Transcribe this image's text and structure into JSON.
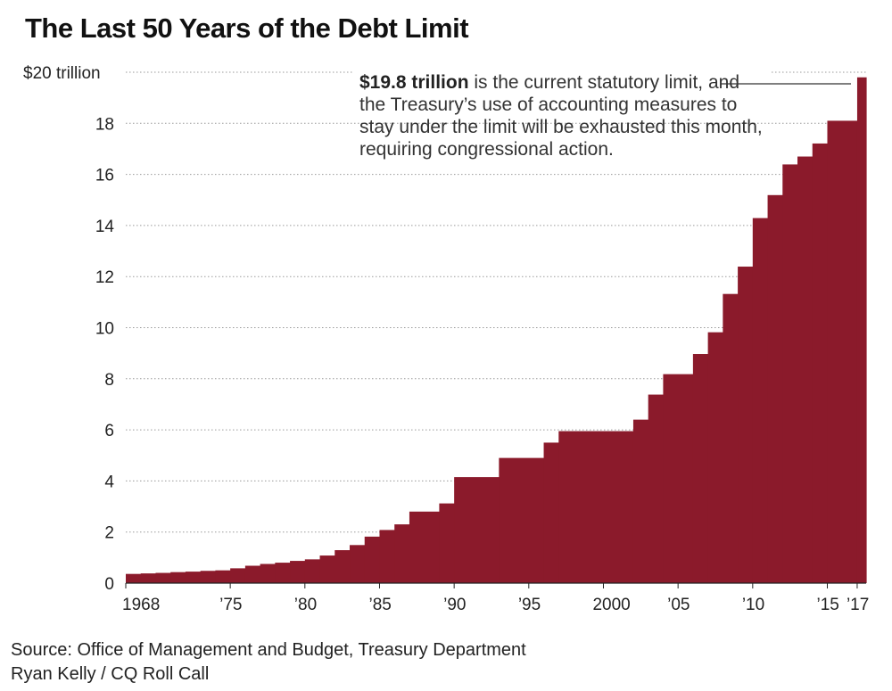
{
  "title": "The Last 50 Years of the Debt Limit",
  "annotation": {
    "bold": "$19.8 trillion",
    "text": " is the current statutory limit, and the Treasury’s use of accounting measures to stay under the limit will be exhausted this month, requiring congressional action."
  },
  "source_line": "Source: Office of Management and Budget, Treasury Department",
  "credit_line": "Ryan Kelly / CQ Roll Call",
  "colors": {
    "fill": "#8b1a2b",
    "grid": "#9a9a9a",
    "text": "#222222"
  },
  "chart_data": {
    "type": "area",
    "step": true,
    "title": "The Last 50 Years of the Debt Limit",
    "xlabel": "",
    "ylabel": "",
    "xlim": [
      1968,
      2017.6
    ],
    "ylim": [
      0,
      20
    ],
    "y_ticks": [
      {
        "value": 0,
        "label": "0"
      },
      {
        "value": 2,
        "label": "2"
      },
      {
        "value": 4,
        "label": "4"
      },
      {
        "value": 6,
        "label": "6"
      },
      {
        "value": 8,
        "label": "8"
      },
      {
        "value": 10,
        "label": "10"
      },
      {
        "value": 12,
        "label": "12"
      },
      {
        "value": 14,
        "label": "14"
      },
      {
        "value": 16,
        "label": "16"
      },
      {
        "value": 18,
        "label": "18"
      },
      {
        "value": 20,
        "label": "$20 trillion"
      }
    ],
    "x_ticks": [
      {
        "value": 1968,
        "label": "1968"
      },
      {
        "value": 1975,
        "label": "’75"
      },
      {
        "value": 1980,
        "label": "’80"
      },
      {
        "value": 1985,
        "label": "’85"
      },
      {
        "value": 1990,
        "label": "’90"
      },
      {
        "value": 1995,
        "label": "’95"
      },
      {
        "value": 2000,
        "label": "2000"
      },
      {
        "value": 2005,
        "label": "’05"
      },
      {
        "value": 2010,
        "label": "’10"
      },
      {
        "value": 2015,
        "label": "’15"
      },
      {
        "value": 2017,
        "label": "’17"
      }
    ],
    "steps": [
      {
        "x": 1968.0,
        "y": 0.36
      },
      {
        "x": 1969.0,
        "y": 0.38
      },
      {
        "x": 1970.0,
        "y": 0.4
      },
      {
        "x": 1971.0,
        "y": 0.43
      },
      {
        "x": 1972.0,
        "y": 0.45
      },
      {
        "x": 1973.0,
        "y": 0.48
      },
      {
        "x": 1974.0,
        "y": 0.5
      },
      {
        "x": 1975.0,
        "y": 0.58
      },
      {
        "x": 1976.0,
        "y": 0.68
      },
      {
        "x": 1977.0,
        "y": 0.75
      },
      {
        "x": 1978.0,
        "y": 0.8
      },
      {
        "x": 1979.0,
        "y": 0.87
      },
      {
        "x": 1980.0,
        "y": 0.93
      },
      {
        "x": 1981.0,
        "y": 1.08
      },
      {
        "x": 1982.0,
        "y": 1.29
      },
      {
        "x": 1983.0,
        "y": 1.49
      },
      {
        "x": 1984.0,
        "y": 1.82
      },
      {
        "x": 1985.0,
        "y": 2.08
      },
      {
        "x": 1986.0,
        "y": 2.3
      },
      {
        "x": 1987.0,
        "y": 2.8
      },
      {
        "x": 1989.0,
        "y": 3.12
      },
      {
        "x": 1990.0,
        "y": 4.15
      },
      {
        "x": 1993.0,
        "y": 4.9
      },
      {
        "x": 1996.0,
        "y": 5.5
      },
      {
        "x": 1997.0,
        "y": 5.95
      },
      {
        "x": 2002.0,
        "y": 6.4
      },
      {
        "x": 2003.0,
        "y": 7.38
      },
      {
        "x": 2004.0,
        "y": 8.18
      },
      {
        "x": 2006.0,
        "y": 8.97
      },
      {
        "x": 2007.0,
        "y": 9.82
      },
      {
        "x": 2008.0,
        "y": 11.32
      },
      {
        "x": 2009.0,
        "y": 12.39
      },
      {
        "x": 2010.0,
        "y": 14.29
      },
      {
        "x": 2011.0,
        "y": 15.19
      },
      {
        "x": 2012.0,
        "y": 16.39
      },
      {
        "x": 2013.0,
        "y": 16.7
      },
      {
        "x": 2014.0,
        "y": 17.21
      },
      {
        "x": 2015.0,
        "y": 18.1
      },
      {
        "x": 2017.0,
        "y": 19.8
      }
    ]
  }
}
